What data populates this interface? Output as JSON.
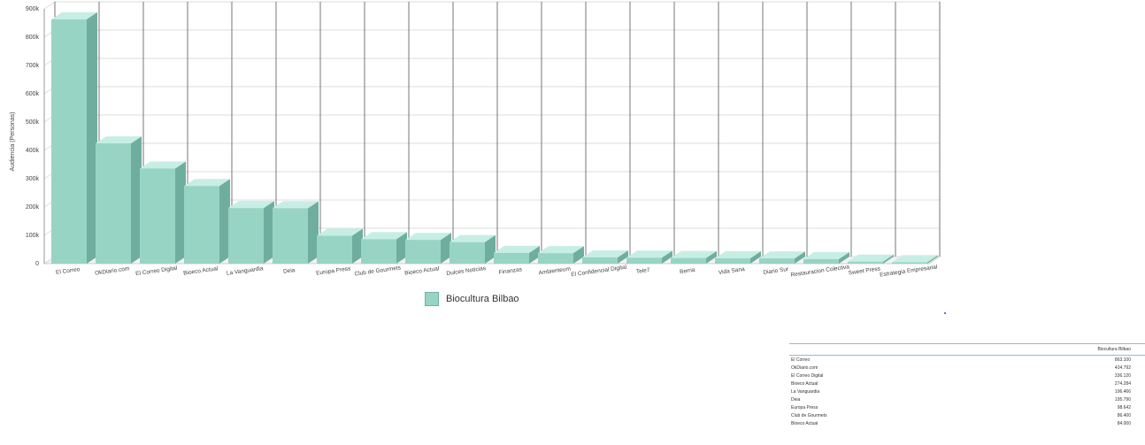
{
  "chart_data": {
    "type": "bar",
    "ylabel": "Audiencia (Personas)",
    "ylim": [
      0,
      900000
    ],
    "yticks": [
      0,
      100000,
      200000,
      300000,
      400000,
      500000,
      600000,
      700000,
      800000,
      900000
    ],
    "ytick_labels": [
      "0",
      "100k",
      "200k",
      "300k",
      "400k",
      "500k",
      "600k",
      "700k",
      "800k",
      "900k"
    ],
    "categories": [
      "El Correo",
      "OkDiario.com",
      "El Correo Digital",
      "Bioeco Actual",
      "La Vanguardia",
      "Deia",
      "Europa Press",
      "Club de Gourmets",
      "Bioeco Actual",
      "Dulces Noticias",
      "Finanzas",
      "Ambienteum",
      "El Confidencial Digital",
      "Tele7",
      "Berria",
      "Vida Sana",
      "Diario Sur",
      "Restauracion Colectiva",
      "Sweet Press",
      "Estrategia Empresarial"
    ],
    "series": [
      {
        "name": "Biocultura Bilbao",
        "values": [
          863100,
          424792,
          336120,
          274284,
          196466,
          195790,
          98642,
          86400,
          84000,
          76000,
          38000,
          37000,
          22000,
          21000,
          20000,
          19000,
          18500,
          16000,
          7000,
          5000
        ]
      }
    ],
    "legend": "bottom-center",
    "grid": true
  },
  "colors": {
    "bar_front": "#98d4c4",
    "bar_top": "#c7eee4",
    "bar_side": "#6fae9e",
    "grid": "#dcdcdc"
  },
  "legend": {
    "label": "Biocultura Bilbao"
  },
  "table": {
    "header": "Biocultura Bilbao",
    "rows": [
      {
        "name": "El Correo",
        "value": "863.100"
      },
      {
        "name": "OkDiario.com",
        "value": "424.792"
      },
      {
        "name": "El Correo Digital",
        "value": "336.120"
      },
      {
        "name": "Bioeco Actual",
        "value": "274.284"
      },
      {
        "name": "La Vanguardia",
        "value": "196.466"
      },
      {
        "name": "Deia",
        "value": "195.790"
      },
      {
        "name": "Europa Press",
        "value": "98.642"
      },
      {
        "name": "Club de Gourmets",
        "value": "86.400"
      },
      {
        "name": "Bioeco Actual",
        "value": "84.000"
      }
    ]
  }
}
